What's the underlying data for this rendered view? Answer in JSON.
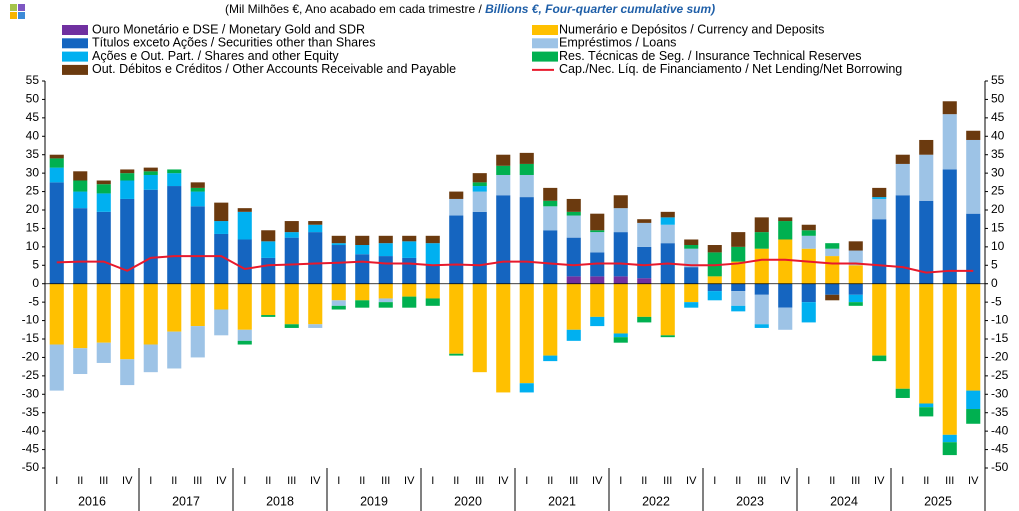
{
  "chart_data": {
    "type": "bar",
    "subtitle_pt": "(Mil Milhões  €, Ano acabado em cada trimestre   / ",
    "subtitle_en": "Billions €, Four-quarter cumulative sum)",
    "categories": [
      "I",
      "II",
      "III",
      "IV",
      "I",
      "II",
      "III",
      "IV",
      "I",
      "II",
      "III",
      "IV",
      "I",
      "II",
      "III",
      "IV",
      "I",
      "II",
      "III",
      "IV",
      "I",
      "II",
      "III",
      "IV",
      "I",
      "II",
      "III",
      "IV",
      "I",
      "II",
      "III",
      "IV",
      "I",
      "II",
      "III",
      "IV",
      "I",
      "II",
      "III",
      "IV"
    ],
    "years": [
      "2016",
      "2017",
      "2018",
      "2019",
      "2020",
      "2021",
      "2022",
      "2023",
      "2024",
      "2025"
    ],
    "ylim": [
      -50,
      55
    ],
    "yticks": [
      -50,
      -45,
      -40,
      -35,
      -30,
      -25,
      -20,
      -15,
      -10,
      -5,
      0,
      5,
      10,
      15,
      20,
      25,
      30,
      35,
      40,
      45,
      50,
      55
    ],
    "series": [
      {
        "name": "Ouro Monetário e DSE / Monetary Gold and SDR",
        "color": "#7030a0",
        "type": "bar",
        "values": [
          0,
          0,
          0,
          0,
          0,
          0,
          0,
          0,
          0,
          0,
          0,
          0,
          0,
          0,
          0,
          0,
          0,
          0,
          0,
          0,
          0,
          0,
          2,
          2,
          2,
          1.5,
          0,
          0,
          0,
          0,
          0,
          0,
          0,
          0,
          0,
          0,
          0,
          0,
          0,
          0
        ]
      },
      {
        "name": "Numerário e Depósitos / Currency and Deposits",
        "color": "#ffc000",
        "type": "bar",
        "values": [
          -16.5,
          -17.5,
          -16,
          -20.5,
          -16.5,
          -13,
          -11.5,
          -7,
          -12.5,
          -8.5,
          -11,
          -11,
          -4.5,
          -4.5,
          -4,
          -3.5,
          -4,
          -19,
          -24,
          -29.5,
          -27,
          -19.5,
          -12.5,
          -9,
          -13.5,
          -9,
          -14,
          -5,
          2,
          6,
          9.5,
          12,
          9.5,
          7.5,
          5,
          -19.5,
          -28.5,
          -32.5,
          -41,
          -29
        ]
      },
      {
        "name": "Títulos exceto Ações / Securities other than Shares",
        "color": "#1565c0",
        "type": "bar",
        "values": [
          27.5,
          20.5,
          19.5,
          23,
          25.5,
          26.5,
          21,
          13.5,
          12,
          7,
          12.5,
          14,
          10.5,
          8,
          7.5,
          7,
          5,
          18.5,
          19.5,
          24,
          23.5,
          14.5,
          10.5,
          6.5,
          12,
          8.5,
          11,
          4.5,
          -2,
          -2,
          -3,
          -6.5,
          -5,
          -3,
          -3,
          17.5,
          24,
          22.5,
          31,
          19
        ]
      },
      {
        "name": "Empréstimos / Loans",
        "color": "#9dc3e6",
        "type": "bar",
        "values": [
          -12.5,
          -7,
          -5.5,
          -7,
          -7.5,
          -10,
          -8.5,
          -7,
          -3,
          0,
          0,
          -1,
          -1.5,
          0,
          -1,
          0,
          0,
          4.5,
          5.5,
          5.5,
          6,
          6.5,
          6,
          5.5,
          6.5,
          6.5,
          5,
          5,
          0,
          -4,
          -8,
          -6,
          3.5,
          2,
          4,
          5.5,
          8.5,
          12.5,
          15,
          20
        ]
      },
      {
        "name": "Ações e Out. Part. / Shares and other Equity",
        "color": "#00b0f0",
        "type": "bar",
        "values": [
          4,
          4.5,
          5,
          5,
          4,
          3.5,
          4,
          3.5,
          7.5,
          4.5,
          1.5,
          2,
          0.5,
          2.5,
          3.5,
          4.5,
          6,
          0,
          1.5,
          0,
          -2.5,
          -1.5,
          -3,
          -2.5,
          -1,
          0,
          2,
          -1.5,
          -2.5,
          -1.5,
          -1,
          0,
          -5.5,
          0,
          -2,
          0.5,
          0,
          -1,
          -2,
          -5
        ]
      },
      {
        "name": "Res. Técnicas de Seg. / Insurance Technical Reserves",
        "color": "#00b050",
        "type": "bar",
        "values": [
          2.5,
          3,
          2.5,
          2,
          1,
          1,
          1,
          0,
          -1,
          -0.5,
          -1,
          0,
          -1,
          -2,
          -1.5,
          -3,
          -2,
          -0.5,
          1,
          2.5,
          3,
          1.5,
          1,
          0.5,
          -1.5,
          -1.5,
          -0.5,
          1,
          6.5,
          4,
          4.5,
          5,
          1.5,
          1.5,
          -1,
          -1.5,
          -2.5,
          -2.5,
          -3.5,
          -4
        ]
      },
      {
        "name": "Out. Débitos e Créditos / Other Accounts Receivable and Payable",
        "color": "#6b3a0f",
        "type": "bar",
        "values": [
          1,
          2.5,
          1,
          1,
          1,
          0,
          1.5,
          5,
          1,
          3,
          3,
          1,
          2,
          2.5,
          2,
          1.5,
          2,
          2,
          2.5,
          3,
          3,
          3.5,
          3.5,
          4.5,
          3.5,
          1,
          1.5,
          1.5,
          2,
          4,
          4,
          1,
          1.5,
          -1.5,
          2.5,
          2.5,
          2.5,
          4,
          3.5,
          2.5
        ]
      },
      {
        "name": "Cap./Nec. Líq. de Financiamento / Net Lending/Net Borrowing",
        "color": "#e8192c",
        "type": "line",
        "values": [
          5.8,
          6,
          6,
          3.5,
          7,
          7.5,
          7.5,
          7.5,
          4,
          5,
          5.2,
          5.5,
          5.7,
          6,
          5.5,
          5.5,
          5,
          5.2,
          5,
          6,
          6,
          5.5,
          5,
          5.5,
          5.5,
          5,
          5.5,
          5,
          5,
          5.5,
          6.5,
          6.5,
          6,
          5.5,
          5.5,
          5,
          4.5,
          3,
          3.5,
          3.5
        ]
      }
    ]
  }
}
